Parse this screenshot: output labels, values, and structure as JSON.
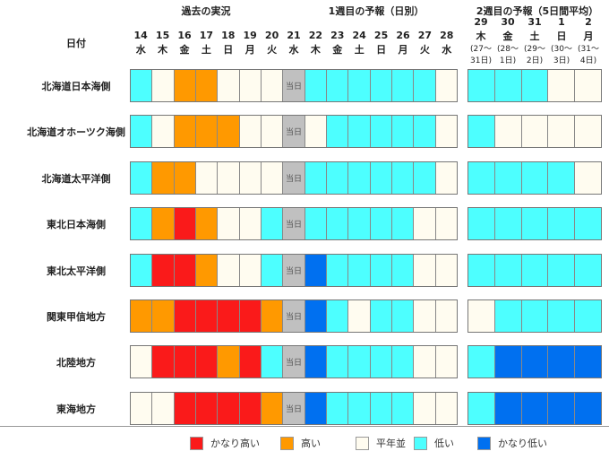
{
  "headers": {
    "past": "過去の実況",
    "week1": "1週目の予報（日別）",
    "week2": "2週目の予報（5日間平均）",
    "date_label": "日付"
  },
  "days": [
    [
      "14",
      "水"
    ],
    [
      "15",
      "木"
    ],
    [
      "16",
      "金"
    ],
    [
      "17",
      "土"
    ],
    [
      "18",
      "日"
    ],
    [
      "19",
      "月"
    ],
    [
      "20",
      "火"
    ],
    [
      "21",
      "水"
    ],
    [
      "22",
      "木"
    ],
    [
      "23",
      "金"
    ],
    [
      "24",
      "土"
    ],
    [
      "25",
      "日"
    ],
    [
      "26",
      "月"
    ],
    [
      "27",
      "火"
    ],
    [
      "28",
      "水"
    ]
  ],
  "week2_days": [
    [
      "29",
      "木",
      "(27～",
      "31日)"
    ],
    [
      "30",
      "金",
      "(28～",
      "1日)"
    ],
    [
      "31",
      "土",
      "(29～",
      "2日)"
    ],
    [
      "1",
      "日",
      "(30～",
      "3日)"
    ],
    [
      "2",
      "月",
      "(31～",
      "4日)"
    ]
  ],
  "today_label": "当日",
  "colors": {
    "R": "#fa1a1a",
    "O": "#ff9900",
    "N": "#fffcf0",
    "L": "#4dffff",
    "B": "#0070f0",
    "T": "#c0c0c0"
  },
  "regions": [
    {
      "name": "北海道日本海側",
      "daily": "LNOONNNTLLLLLLN",
      "week2": "LLLNN"
    },
    {
      "name": "北海道オホーツク海側",
      "daily": "LNOOONNTNLLLLLN",
      "week2": "LNNNN"
    },
    {
      "name": "北海道太平洋側",
      "daily": "LOONNNNTLLLLLLN",
      "week2": "LLLLN"
    },
    {
      "name": "東北日本海側",
      "daily": "LORONNLTLLLLLNN",
      "week2": "LLLLL"
    },
    {
      "name": "東北太平洋側",
      "daily": "LRRONNLTBLLLLNN",
      "week2": "LLLLL"
    },
    {
      "name": "関東甲信地方",
      "daily": "OORRRROTBLNLLNN",
      "week2": "NLLLL"
    },
    {
      "name": "北陸地方",
      "daily": "NRRRORLTBLLLLNN",
      "week2": "LBBBB"
    },
    {
      "name": "東海地方",
      "daily": "NNRRRROTBLLLLNN",
      "week2": "LBBBB"
    }
  ],
  "legend": [
    {
      "code": "R",
      "label": "かなり高い"
    },
    {
      "code": "O",
      "label": "高い"
    },
    {
      "code": "N",
      "label": "平年並"
    },
    {
      "code": "L",
      "label": "低い"
    },
    {
      "code": "B",
      "label": "かなり低い"
    }
  ]
}
